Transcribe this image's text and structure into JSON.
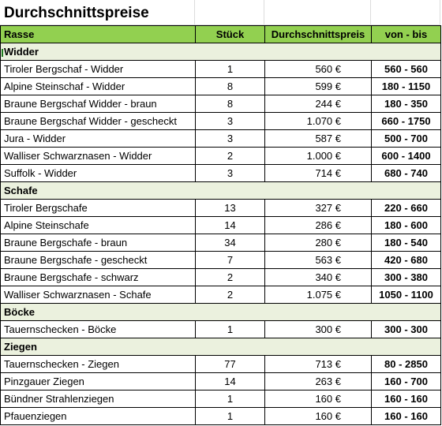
{
  "title": "Durchschnittspreise",
  "headers": {
    "breed": "Rasse",
    "count": "Stück",
    "avg_price": "Durchschnittspreis",
    "range": "von - bis"
  },
  "groups": [
    {
      "name": "Widder",
      "rows": [
        {
          "breed": "Tiroler Bergschaf - Widder",
          "count": "1",
          "price": "560 €",
          "range": "560 - 560"
        },
        {
          "breed": "Alpine Steinschaf - Widder",
          "count": "8",
          "price": "599 €",
          "range": "180 - 1150"
        },
        {
          "breed": "Braune Bergschaf Widder - braun",
          "count": "8",
          "price": "244 €",
          "range": "180 - 350"
        },
        {
          "breed": "Braune Bergschaf Widder - gescheckt",
          "count": "3",
          "price": "1.070 €",
          "range": "660 - 1750"
        },
        {
          "breed": "Jura - Widder",
          "count": "3",
          "price": "587 €",
          "range": "500 - 700"
        },
        {
          "breed": "Walliser Schwarznasen - Widder",
          "count": "2",
          "price": "1.000 €",
          "range": "600 - 1400"
        },
        {
          "breed": "Suffolk - Widder",
          "count": "3",
          "price": "714 €",
          "range": "680 - 740"
        }
      ]
    },
    {
      "name": "Schafe",
      "rows": [
        {
          "breed": "Tiroler Bergschafe",
          "count": "13",
          "price": "327 €",
          "range": "220 - 660"
        },
        {
          "breed": "Alpine Steinschafe",
          "count": "14",
          "price": "286 €",
          "range": "180 - 600"
        },
        {
          "breed": "Braune Bergschafe - braun",
          "count": "34",
          "price": "280 €",
          "range": "180 - 540"
        },
        {
          "breed": "Braune Bergschafe - gescheckt",
          "count": "7",
          "price": "563 €",
          "range": "420 - 680"
        },
        {
          "breed": "Braune Bergschafe - schwarz",
          "count": "2",
          "price": "340 €",
          "range": "300 - 380"
        },
        {
          "breed": "Walliser Schwarznasen - Schafe",
          "count": "2",
          "price": "1.075 €",
          "range": "1050 - 1100"
        }
      ]
    },
    {
      "name": "Böcke",
      "rows": [
        {
          "breed": "Tauernschecken - Böcke",
          "count": "1",
          "price": "300 €",
          "range": "300 - 300"
        }
      ]
    },
    {
      "name": "Ziegen",
      "rows": [
        {
          "breed": "Tauernschecken - Ziegen",
          "count": "77",
          "price": "713 €",
          "range": "80 - 2850"
        },
        {
          "breed": "Pinzgauer Ziegen",
          "count": "14",
          "price": "263 €",
          "range": "160 - 700"
        },
        {
          "breed": "Bündner Strahlenziegen",
          "count": "1",
          "price": "160 €",
          "range": "160 - 160"
        },
        {
          "breed": "Pfauenziegen",
          "count": "1",
          "price": "160 €",
          "range": "160 - 160"
        }
      ]
    }
  ],
  "colors": {
    "header_bg": "#92d050",
    "group_bg": "#ebf1de"
  }
}
